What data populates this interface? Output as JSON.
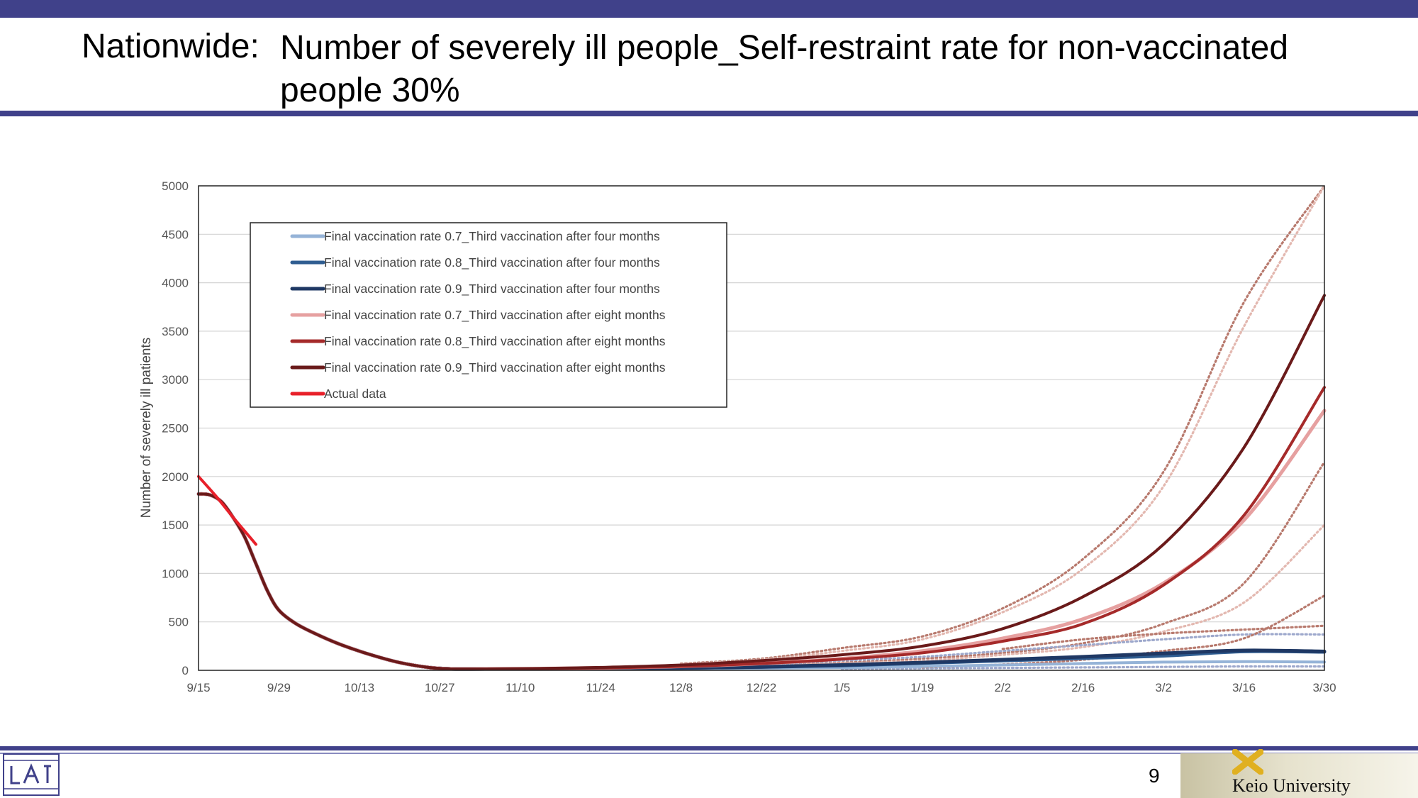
{
  "slide": {
    "title_prefix": "Nationwide:",
    "title_main": "Number of severely ill people_Self-restraint rate for non-vaccinated people 30%",
    "page_number": "9",
    "university": "Keio University",
    "colors": {
      "accent_bar": "#40418a"
    }
  },
  "chart_data": {
    "type": "line",
    "title": "",
    "xlabel": "",
    "ylabel": "Number of severely ill patients",
    "ylim": [
      0,
      5000
    ],
    "yticks": [
      0,
      500,
      1000,
      1500,
      2000,
      2500,
      3000,
      3500,
      4000,
      4500,
      5000
    ],
    "x_start": "9/15",
    "x_end": "3/30",
    "xticks": [
      {
        "label": "9/15",
        "day": 0
      },
      {
        "label": "9/29",
        "day": 14
      },
      {
        "label": "10/13",
        "day": 28
      },
      {
        "label": "10/27",
        "day": 42
      },
      {
        "label": "11/10",
        "day": 56
      },
      {
        "label": "11/24",
        "day": 70
      },
      {
        "label": "12/8",
        "day": 84
      },
      {
        "label": "12/22",
        "day": 98
      },
      {
        "label": "1/5",
        "day": 112
      },
      {
        "label": "1/19",
        "day": 126
      },
      {
        "label": "2/2",
        "day": 140
      },
      {
        "label": "2/16",
        "day": 154
      },
      {
        "label": "3/2",
        "day": 168
      },
      {
        "label": "3/16",
        "day": 182
      },
      {
        "label": "3/30",
        "day": 196
      }
    ],
    "grid": "horizontal",
    "legend_position": "top-left",
    "series": [
      {
        "name": "Final vaccination rate 0.7_Third vaccination after four months",
        "color": "#95b3d7",
        "width": 4,
        "points": [
          [
            0,
            1820
          ],
          [
            2,
            1810
          ],
          [
            4,
            1740
          ],
          [
            6,
            1580
          ],
          [
            8,
            1380
          ],
          [
            10,
            1100
          ],
          [
            12,
            820
          ],
          [
            14,
            620
          ],
          [
            17,
            480
          ],
          [
            21,
            360
          ],
          [
            25,
            260
          ],
          [
            30,
            160
          ],
          [
            35,
            80
          ],
          [
            40,
            30
          ],
          [
            44,
            15
          ],
          [
            50,
            15
          ],
          [
            60,
            15
          ],
          [
            70,
            15
          ],
          [
            84,
            18
          ],
          [
            98,
            22
          ],
          [
            112,
            28
          ],
          [
            126,
            40
          ],
          [
            140,
            55
          ],
          [
            154,
            70
          ],
          [
            168,
            85
          ],
          [
            182,
            90
          ],
          [
            196,
            85
          ]
        ]
      },
      {
        "name": "Final vaccination rate 0.8_Third vaccination after four months",
        "color": "#2f5d91",
        "width": 5,
        "points": [
          [
            0,
            1820
          ],
          [
            2,
            1810
          ],
          [
            4,
            1740
          ],
          [
            6,
            1580
          ],
          [
            8,
            1380
          ],
          [
            10,
            1100
          ],
          [
            12,
            820
          ],
          [
            14,
            620
          ],
          [
            17,
            480
          ],
          [
            21,
            360
          ],
          [
            25,
            260
          ],
          [
            30,
            160
          ],
          [
            35,
            80
          ],
          [
            40,
            30
          ],
          [
            44,
            15
          ],
          [
            50,
            15
          ],
          [
            60,
            15
          ],
          [
            70,
            18
          ],
          [
            84,
            25
          ],
          [
            98,
            35
          ],
          [
            112,
            50
          ],
          [
            126,
            75
          ],
          [
            140,
            100
          ],
          [
            154,
            125
          ],
          [
            168,
            150
          ],
          [
            182,
            195
          ],
          [
            196,
            190
          ]
        ]
      },
      {
        "name": "Final vaccination rate 0.9_Third vaccination after four months",
        "color": "#1f3864",
        "width": 5,
        "points": [
          [
            0,
            1820
          ],
          [
            2,
            1810
          ],
          [
            4,
            1740
          ],
          [
            6,
            1580
          ],
          [
            8,
            1380
          ],
          [
            10,
            1100
          ],
          [
            12,
            820
          ],
          [
            14,
            620
          ],
          [
            17,
            480
          ],
          [
            21,
            360
          ],
          [
            25,
            260
          ],
          [
            30,
            160
          ],
          [
            35,
            80
          ],
          [
            40,
            30
          ],
          [
            44,
            15
          ],
          [
            50,
            15
          ],
          [
            60,
            15
          ],
          [
            70,
            18
          ],
          [
            84,
            25
          ],
          [
            98,
            35
          ],
          [
            112,
            55
          ],
          [
            126,
            80
          ],
          [
            140,
            110
          ],
          [
            154,
            140
          ],
          [
            168,
            175
          ],
          [
            182,
            205
          ],
          [
            196,
            195
          ]
        ]
      },
      {
        "name": "Final vaccination rate 0.7_Third vaccination after eight months",
        "color": "#e6a0a0",
        "width": 5,
        "points": [
          [
            0,
            1820
          ],
          [
            2,
            1810
          ],
          [
            4,
            1740
          ],
          [
            6,
            1580
          ],
          [
            8,
            1380
          ],
          [
            10,
            1100
          ],
          [
            12,
            820
          ],
          [
            14,
            620
          ],
          [
            17,
            480
          ],
          [
            21,
            360
          ],
          [
            25,
            260
          ],
          [
            30,
            160
          ],
          [
            35,
            80
          ],
          [
            40,
            30
          ],
          [
            44,
            15
          ],
          [
            50,
            15
          ],
          [
            60,
            18
          ],
          [
            70,
            25
          ],
          [
            84,
            40
          ],
          [
            98,
            70
          ],
          [
            112,
            120
          ],
          [
            126,
            200
          ],
          [
            140,
            330
          ],
          [
            154,
            530
          ],
          [
            168,
            900
          ],
          [
            182,
            1550
          ],
          [
            196,
            2680
          ]
        ]
      },
      {
        "name": "Final vaccination rate 0.8_Third vaccination after eight months",
        "color": "#a52a2a",
        "width": 4,
        "points": [
          [
            0,
            1820
          ],
          [
            2,
            1810
          ],
          [
            4,
            1740
          ],
          [
            6,
            1580
          ],
          [
            8,
            1380
          ],
          [
            10,
            1100
          ],
          [
            12,
            820
          ],
          [
            14,
            620
          ],
          [
            17,
            480
          ],
          [
            21,
            360
          ],
          [
            25,
            260
          ],
          [
            30,
            160
          ],
          [
            35,
            80
          ],
          [
            40,
            30
          ],
          [
            44,
            15
          ],
          [
            50,
            15
          ],
          [
            60,
            18
          ],
          [
            70,
            25
          ],
          [
            84,
            40
          ],
          [
            98,
            70
          ],
          [
            112,
            115
          ],
          [
            126,
            180
          ],
          [
            140,
            300
          ],
          [
            154,
            480
          ],
          [
            168,
            880
          ],
          [
            182,
            1600
          ],
          [
            196,
            2920
          ]
        ]
      },
      {
        "name": "Final vaccination rate 0.9_Third vaccination after eight months",
        "color": "#6a1a1a",
        "width": 4,
        "points": [
          [
            0,
            1820
          ],
          [
            2,
            1810
          ],
          [
            4,
            1740
          ],
          [
            6,
            1580
          ],
          [
            8,
            1380
          ],
          [
            10,
            1100
          ],
          [
            12,
            820
          ],
          [
            14,
            620
          ],
          [
            17,
            480
          ],
          [
            21,
            360
          ],
          [
            25,
            260
          ],
          [
            30,
            160
          ],
          [
            35,
            80
          ],
          [
            40,
            30
          ],
          [
            44,
            15
          ],
          [
            50,
            15
          ],
          [
            60,
            20
          ],
          [
            70,
            30
          ],
          [
            84,
            55
          ],
          [
            98,
            100
          ],
          [
            112,
            160
          ],
          [
            126,
            250
          ],
          [
            140,
            430
          ],
          [
            154,
            760
          ],
          [
            168,
            1300
          ],
          [
            182,
            2300
          ],
          [
            196,
            3870
          ]
        ]
      },
      {
        "name": "Actual data",
        "color": "#e8202a",
        "width": 4,
        "points": [
          [
            0,
            2000
          ],
          [
            3,
            1800
          ],
          [
            6,
            1580
          ],
          [
            8,
            1440
          ],
          [
            10,
            1300
          ]
        ]
      }
    ],
    "bands": [
      {
        "color": "#b87a6e",
        "lower": [
          [
            98,
            50
          ],
          [
            112,
            80
          ],
          [
            126,
            120
          ],
          [
            140,
            180
          ],
          [
            154,
            280
          ],
          [
            168,
            480
          ],
          [
            182,
            900
          ],
          [
            196,
            2150
          ]
        ],
        "upper": [
          [
            84,
            70
          ],
          [
            98,
            120
          ],
          [
            112,
            230
          ],
          [
            126,
            350
          ],
          [
            140,
            640
          ],
          [
            154,
            1150
          ],
          [
            168,
            2050
          ],
          [
            182,
            3800
          ],
          [
            196,
            5000
          ]
        ]
      },
      {
        "color": "#e3b8b0",
        "lower": [
          [
            98,
            40
          ],
          [
            112,
            70
          ],
          [
            126,
            100
          ],
          [
            140,
            160
          ],
          [
            154,
            240
          ],
          [
            168,
            400
          ],
          [
            182,
            700
          ],
          [
            196,
            1500
          ]
        ],
        "upper": [
          [
            84,
            65
          ],
          [
            98,
            110
          ],
          [
            112,
            200
          ],
          [
            126,
            320
          ],
          [
            140,
            600
          ],
          [
            154,
            1050
          ],
          [
            168,
            1900
          ],
          [
            182,
            3550
          ],
          [
            196,
            5000
          ]
        ]
      },
      {
        "color": "#9da8cc",
        "lower": [
          [
            112,
            15
          ],
          [
            126,
            20
          ],
          [
            140,
            25
          ],
          [
            154,
            30
          ],
          [
            168,
            35
          ],
          [
            182,
            40
          ],
          [
            196,
            40
          ]
        ],
        "upper": [
          [
            84,
            30
          ],
          [
            98,
            60
          ],
          [
            112,
            100
          ],
          [
            126,
            140
          ],
          [
            140,
            200
          ],
          [
            154,
            260
          ],
          [
            168,
            320
          ],
          [
            182,
            370
          ],
          [
            196,
            370
          ]
        ]
      },
      {
        "color": "#b87a6e",
        "lower": [
          [
            126,
            30
          ],
          [
            140,
            60
          ],
          [
            154,
            110
          ],
          [
            168,
            200
          ],
          [
            182,
            330
          ],
          [
            196,
            770
          ]
        ],
        "upper": [
          [
            140,
            220
          ],
          [
            154,
            320
          ],
          [
            168,
            380
          ],
          [
            182,
            420
          ],
          [
            196,
            460
          ]
        ]
      }
    ]
  }
}
